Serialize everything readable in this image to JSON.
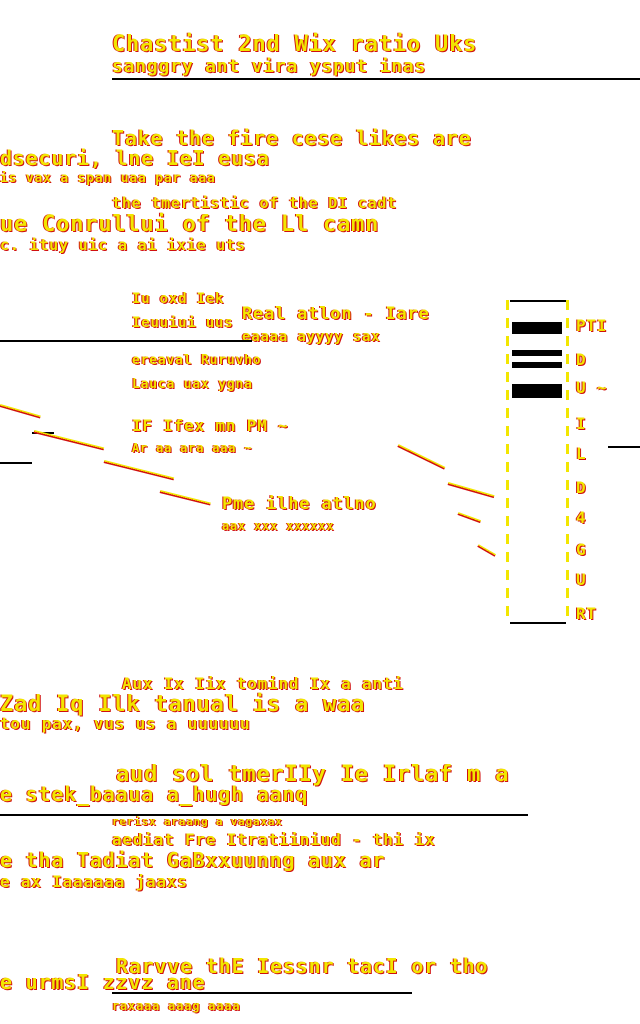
{
  "colors": {
    "background": "#ffffff",
    "primary_text": "#f2e600",
    "shadow": "#d01010",
    "ink": "#000000"
  },
  "fragments": [
    "Chastist 2nd Wix ratio Uks",
    "sanggry ant vira ysput inas",
    "Take the fire cese likes are",
    "dsecuri, lne IeI eusa",
    "is vax a span uaa par aaa",
    "the tmertistic of the DI cadt",
    "ue Conrullui of the Ll camn",
    "c. ituy uic a ai ixie uts",
    "Iu oxd Iek",
    "Ieuuiui uus",
    "Real atlon - Iare",
    "eaaaa ayyyy sax",
    "ereaval Ruruvho",
    "Lauca uax ygna",
    "IF Ifex mn PM ~",
    "Ar aa ara aaa ~",
    "Pme ilhe atlno",
    "aax xxx xxxxxx",
    "Aux Ix Iix tomind Ix a anti",
    "Zad Iq Ilk tanual is a waa",
    "tou pax, vus us a uuuuuu",
    "aud sol tmerIIy Ie Irlaf m a",
    "e stek_baaua a_hugh aanq",
    "rerisx araang a vagaxax",
    "aediat Fre Itratiiniud - thi ix",
    "e tha Tadiat GaBxxuunng aux ar",
    "e ax Iaaaaaa jaaxs",
    "Rarvve thE Iessnr tacI or tho",
    "e urmsI zzvz ane",
    "raxaaa aaag aaaa"
  ],
  "scale_labels": [
    "PTI",
    "D",
    "U ~",
    "I",
    "L",
    "D",
    "4",
    "G",
    "U",
    "RT"
  ]
}
